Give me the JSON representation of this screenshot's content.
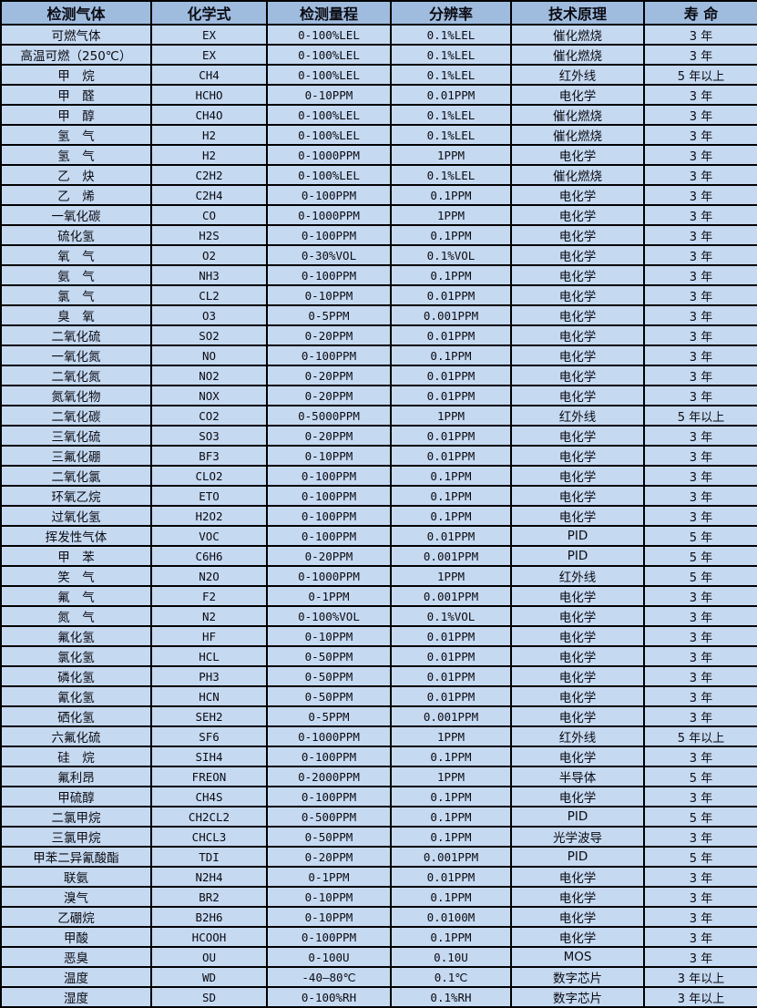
{
  "colors": {
    "header_bg": "#9fbcdf",
    "row_bg": "#c5d9f1",
    "border_color": "#000000",
    "text_color": "#0b0b12"
  },
  "table": {
    "columns": [
      {
        "key": "gas",
        "label": "检测气体"
      },
      {
        "key": "formula",
        "label": "化学式"
      },
      {
        "key": "range",
        "label": "检测量程"
      },
      {
        "key": "resolution",
        "label": "分辨率"
      },
      {
        "key": "principle",
        "label": "技术原理"
      },
      {
        "key": "lifespan",
        "label": "寿 命"
      }
    ],
    "rows": [
      [
        "可燃气体",
        "EX",
        "0-100%LEL",
        "0.1%LEL",
        "催化燃烧",
        "3 年"
      ],
      [
        "高温可燃（250℃）",
        "EX",
        "0-100%LEL",
        "0.1%LEL",
        "催化燃烧",
        "3 年"
      ],
      [
        "甲　烷",
        "CH4",
        "0-100%LEL",
        "0.1%LEL",
        "红外线",
        "5 年以上"
      ],
      [
        "甲　醛",
        "HCHO",
        "0-10PPM",
        "0.01PPM",
        "电化学",
        "3 年"
      ],
      [
        "甲　醇",
        "CH4O",
        "0-100%LEL",
        "0.1%LEL",
        "催化燃烧",
        "3 年"
      ],
      [
        "氢　气",
        "H2",
        "0-100%LEL",
        "0.1%LEL",
        "催化燃烧",
        "3 年"
      ],
      [
        "氢　气",
        "H2",
        "0-1000PPM",
        "1PPM",
        "电化学",
        "3 年"
      ],
      [
        "乙　炔",
        "C2H2",
        "0-100%LEL",
        "0.1%LEL",
        "催化燃烧",
        "3 年"
      ],
      [
        "乙　烯",
        "C2H4",
        "0-100PPM",
        "0.1PPM",
        "电化学",
        "3 年"
      ],
      [
        "一氧化碳",
        "CO",
        "0-1000PPM",
        "1PPM",
        "电化学",
        "3 年"
      ],
      [
        "硫化氢",
        "H2S",
        "0-100PPM",
        "0.1PPM",
        "电化学",
        "3 年"
      ],
      [
        "氧　气",
        "O2",
        "0-30%VOL",
        "0.1%VOL",
        "电化学",
        "3 年"
      ],
      [
        "氨　气",
        "NH3",
        "0-100PPM",
        "0.1PPM",
        "电化学",
        "3 年"
      ],
      [
        "氯　气",
        "CL2",
        "0-10PPM",
        "0.01PPM",
        "电化学",
        "3 年"
      ],
      [
        "臭　氧",
        "O3",
        "0-5PPM",
        "0.001PPM",
        "电化学",
        "3 年"
      ],
      [
        "二氧化硫",
        "SO2",
        "0-20PPM",
        "0.01PPM",
        "电化学",
        "3 年"
      ],
      [
        "一氧化氮",
        "NO",
        "0-100PPM",
        "0.1PPM",
        "电化学",
        "3 年"
      ],
      [
        "二氧化氮",
        "NO2",
        "0-20PPM",
        "0.01PPM",
        "电化学",
        "3 年"
      ],
      [
        "氮氧化物",
        "NOX",
        "0-20PPM",
        "0.01PPM",
        "电化学",
        "3 年"
      ],
      [
        "二氧化碳",
        "CO2",
        "0-5000PPM",
        "1PPM",
        "红外线",
        "5 年以上"
      ],
      [
        "三氧化硫",
        "SO3",
        "0-20PPM",
        "0.01PPM",
        "电化学",
        "3 年"
      ],
      [
        "三氟化硼",
        "BF3",
        "0-10PPM",
        "0.01PPM",
        "电化学",
        "3 年"
      ],
      [
        "二氧化氯",
        "CLO2",
        "0-100PPM",
        "0.1PPM",
        "电化学",
        "3 年"
      ],
      [
        "环氧乙烷",
        "ETO",
        "0-100PPM",
        "0.1PPM",
        "电化学",
        "3 年"
      ],
      [
        "过氧化氢",
        "H2O2",
        "0-100PPM",
        "0.1PPM",
        "电化学",
        "3 年"
      ],
      [
        "挥发性气体",
        "VOC",
        "0-100PPM",
        "0.01PPM",
        "PID",
        "5 年"
      ],
      [
        "甲　苯",
        "C6H6",
        "0-20PPM",
        "0.001PPM",
        "PID",
        "5 年"
      ],
      [
        "笑　气",
        "N2O",
        "0-1000PPM",
        "1PPM",
        "红外线",
        "5 年"
      ],
      [
        "氟　气",
        "F2",
        "0-1PPM",
        "0.001PPM",
        "电化学",
        "3 年"
      ],
      [
        "氮　气",
        "N2",
        "0-100%VOL",
        "0.1%VOL",
        "电化学",
        "3 年"
      ],
      [
        "氟化氢",
        "HF",
        "0-10PPM",
        "0.01PPM",
        "电化学",
        "3 年"
      ],
      [
        "氯化氢",
        "HCL",
        "0-50PPM",
        "0.01PPM",
        "电化学",
        "3 年"
      ],
      [
        "磷化氢",
        "PH3",
        "0-50PPM",
        "0.01PPM",
        "电化学",
        "3 年"
      ],
      [
        "氰化氢",
        "HCN",
        "0-50PPM",
        "0.01PPM",
        "电化学",
        "3 年"
      ],
      [
        "硒化氢",
        "SEH2",
        "0-5PPM",
        "0.001PPM",
        "电化学",
        "3 年"
      ],
      [
        "六氟化硫",
        "SF6",
        "0-1000PPM",
        "1PPM",
        "红外线",
        "5 年以上"
      ],
      [
        "硅　烷",
        "SIH4",
        "0-100PPM",
        "0.1PPM",
        "电化学",
        "3 年"
      ],
      [
        "氟利昂",
        "FREON",
        "0-2000PPM",
        "1PPM",
        "半导体",
        "5 年"
      ],
      [
        "甲硫醇",
        "CH4S",
        "0-100PPM",
        "0.1PPM",
        "电化学",
        "3 年"
      ],
      [
        "二氯甲烷",
        "CH2CL2",
        "0-500PPM",
        "0.1PPM",
        "PID",
        "5 年"
      ],
      [
        "三氯甲烷",
        "CHCL3",
        "0-50PPM",
        "0.1PPM",
        "光学波导",
        "3 年"
      ],
      [
        "甲苯二异氰酸酯",
        "TDI",
        "0-20PPM",
        "0.001PPM",
        "PID",
        "5 年"
      ],
      [
        "联氨",
        "N2H4",
        "0-1PPM",
        "0.01PPM",
        "电化学",
        "3 年"
      ],
      [
        "溴气",
        "BR2",
        "0-10PPM",
        "0.1PPM",
        "电化学",
        "3 年"
      ],
      [
        "乙硼烷",
        "B2H6",
        "0-10PPM",
        "0.0100M",
        "电化学",
        "3 年"
      ],
      [
        "甲酸",
        "HCOOH",
        "0-100PPM",
        "0.1PPM",
        "电化学",
        "3 年"
      ],
      [
        "恶臭",
        "OU",
        "0-100U",
        "0.10U",
        "MOS",
        "3 年"
      ],
      [
        "温度",
        "WD",
        "-40—80℃",
        "0.1℃",
        "数字芯片",
        "3 年以上"
      ],
      [
        "湿度",
        "SD",
        "0-100%RH",
        "0.1%RH",
        "数字芯片",
        "3 年以上"
      ]
    ]
  }
}
